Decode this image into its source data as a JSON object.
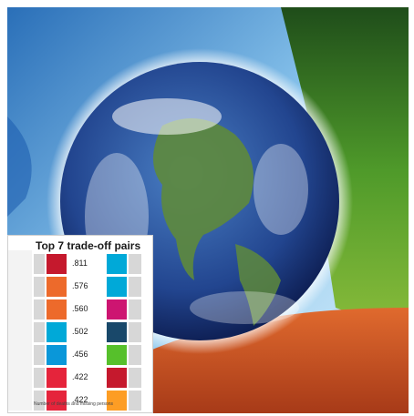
{
  "inset": {
    "title": "Top 7 trade-off pairs",
    "rows": [
      {
        "value": ".811",
        "left_color": "#c5192d",
        "right_color": "#00a9d8"
      },
      {
        "value": ".576",
        "left_color": "#ed6a2b",
        "right_color": "#00a9d8"
      },
      {
        "value": ".560",
        "left_color": "#ed6a2b",
        "right_color": "#cd1571"
      },
      {
        "value": ".502",
        "left_color": "#00a9d8",
        "right_color": "#19486a"
      },
      {
        "value": ".456",
        "left_color": "#0a97d9",
        "right_color": "#56c02b"
      },
      {
        "value": ".422",
        "left_color": "#e5243b",
        "right_color": "#c5192d"
      },
      {
        "value": ".422",
        "left_color": "#e5243b",
        "right_color": "#fd9d24"
      }
    ],
    "footer": "Number of deaths and missing persons"
  },
  "colors": {
    "water": "#5fa8d8",
    "forest": "#3e8a2a",
    "desert": "#d2542a",
    "ocean": "#1d3f8f"
  }
}
